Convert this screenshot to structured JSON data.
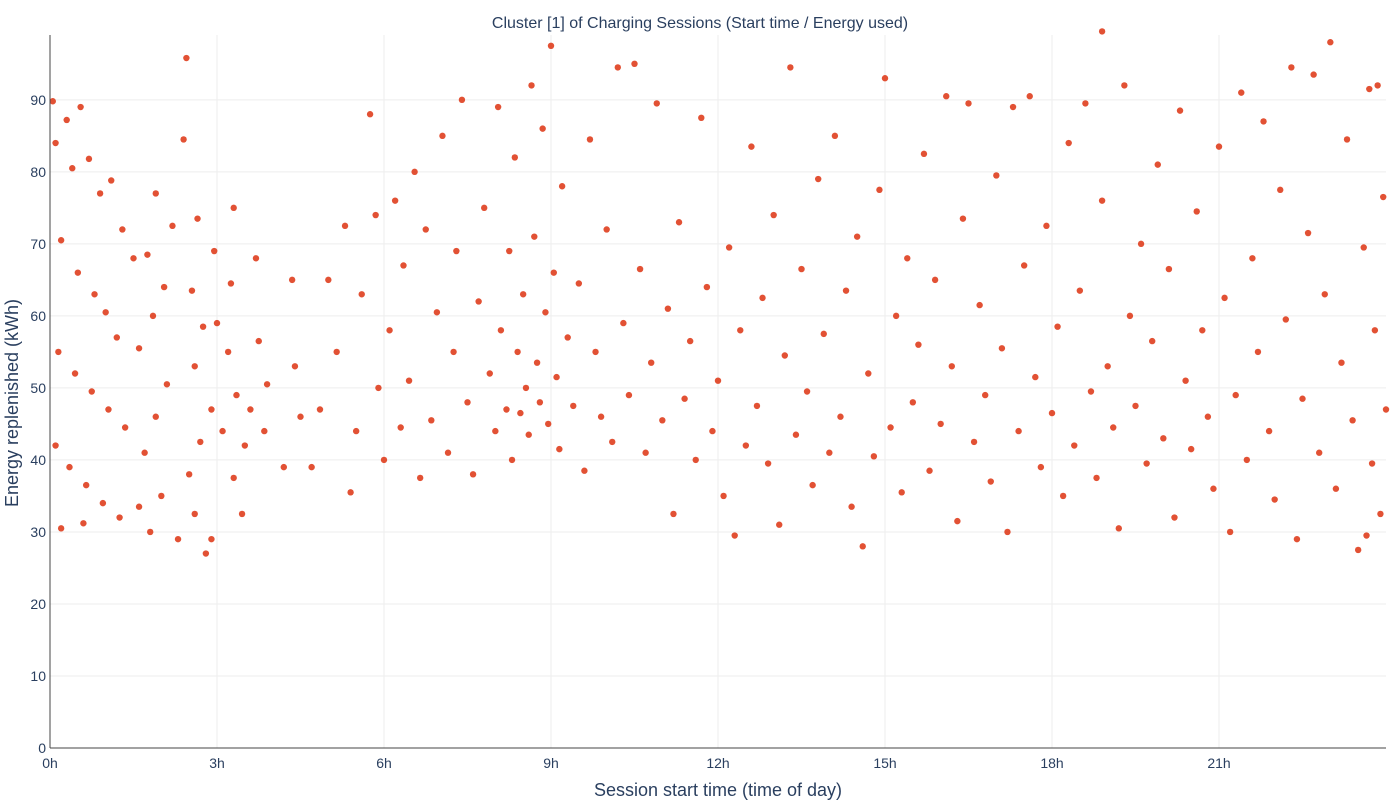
{
  "chart_data": {
    "type": "scatter",
    "title": "Cluster [1] of Charging Sessions (Start time / Energy used)",
    "xlabel": "Session start time (time of day)",
    "ylabel": "Energy replenished (kWh)",
    "x_unit": "hours",
    "xlim": [
      0,
      24
    ],
    "ylim": [
      0,
      99
    ],
    "x_ticks": [
      {
        "value": 0,
        "label": "0h"
      },
      {
        "value": 3,
        "label": "3h"
      },
      {
        "value": 6,
        "label": "6h"
      },
      {
        "value": 9,
        "label": "9h"
      },
      {
        "value": 12,
        "label": "12h"
      },
      {
        "value": 15,
        "label": "15h"
      },
      {
        "value": 18,
        "label": "18h"
      },
      {
        "value": 21,
        "label": "21h"
      }
    ],
    "y_ticks": [
      {
        "value": 0,
        "label": "0"
      },
      {
        "value": 10,
        "label": "10"
      },
      {
        "value": 20,
        "label": "20"
      },
      {
        "value": 30,
        "label": "30"
      },
      {
        "value": 40,
        "label": "40"
      },
      {
        "value": 50,
        "label": "50"
      },
      {
        "value": 60,
        "label": "60"
      },
      {
        "value": 70,
        "label": "70"
      },
      {
        "value": 80,
        "label": "80"
      },
      {
        "value": 90,
        "label": "90"
      }
    ],
    "grid": true,
    "legend": "none",
    "marker_color": "#dd3311",
    "series": [
      {
        "points": [
          [
            0.05,
            89.8
          ],
          [
            0.3,
            87.2
          ],
          [
            0.55,
            89.0
          ],
          [
            0.1,
            84.0
          ],
          [
            0.4,
            80.5
          ],
          [
            0.7,
            81.8
          ],
          [
            0.9,
            77.0
          ],
          [
            1.1,
            78.8
          ],
          [
            1.3,
            72.0
          ],
          [
            1.5,
            68.0
          ],
          [
            0.2,
            70.5
          ],
          [
            0.5,
            66.0
          ],
          [
            0.8,
            63.0
          ],
          [
            1.0,
            60.5
          ],
          [
            1.2,
            57.0
          ],
          [
            0.15,
            55.0
          ],
          [
            0.45,
            52.0
          ],
          [
            0.75,
            49.5
          ],
          [
            1.05,
            47.0
          ],
          [
            1.35,
            44.5
          ],
          [
            0.1,
            42.0
          ],
          [
            0.35,
            39.0
          ],
          [
            0.65,
            36.5
          ],
          [
            0.95,
            34.0
          ],
          [
            1.25,
            32.0
          ],
          [
            0.2,
            30.5
          ],
          [
            0.6,
            31.2
          ],
          [
            1.6,
            33.5
          ],
          [
            1.8,
            30.0
          ],
          [
            2.0,
            35.0
          ],
          [
            1.7,
            41.0
          ],
          [
            1.9,
            46.0
          ],
          [
            2.1,
            50.5
          ],
          [
            1.6,
            55.5
          ],
          [
            1.85,
            60.0
          ],
          [
            2.05,
            64.0
          ],
          [
            1.75,
            68.5
          ],
          [
            2.2,
            72.5
          ],
          [
            1.9,
            77.0
          ],
          [
            2.4,
            84.5
          ],
          [
            2.45,
            95.8
          ],
          [
            2.3,
            29.0
          ],
          [
            2.6,
            32.5
          ],
          [
            2.8,
            27.0
          ],
          [
            2.9,
            29.0
          ],
          [
            2.5,
            38.0
          ],
          [
            2.7,
            42.5
          ],
          [
            2.9,
            47.0
          ],
          [
            2.6,
            53.0
          ],
          [
            2.75,
            58.5
          ],
          [
            2.55,
            63.5
          ],
          [
            2.95,
            69.0
          ],
          [
            2.65,
            73.5
          ],
          [
            3.0,
            59.0
          ],
          [
            3.2,
            55.0
          ],
          [
            3.35,
            49.0
          ],
          [
            3.1,
            44.0
          ],
          [
            3.3,
            37.5
          ],
          [
            3.45,
            32.5
          ],
          [
            3.25,
            64.5
          ],
          [
            3.3,
            75.0
          ],
          [
            3.5,
            42.0
          ],
          [
            3.6,
            47.0
          ],
          [
            3.75,
            56.5
          ],
          [
            3.7,
            68.0
          ],
          [
            3.85,
            44.0
          ],
          [
            3.9,
            50.5
          ],
          [
            4.2,
            39.0
          ],
          [
            4.35,
            65.0
          ],
          [
            4.4,
            53.0
          ],
          [
            4.5,
            46.0
          ],
          [
            4.7,
            39.0
          ],
          [
            4.85,
            47.0
          ],
          [
            5.0,
            65.0
          ],
          [
            5.15,
            55.0
          ],
          [
            5.3,
            72.5
          ],
          [
            5.4,
            35.5
          ],
          [
            5.5,
            44.0
          ],
          [
            5.6,
            63.0
          ],
          [
            5.75,
            88.0
          ],
          [
            5.85,
            74.0
          ],
          [
            5.9,
            50.0
          ],
          [
            6.0,
            40.0
          ],
          [
            6.1,
            58.0
          ],
          [
            6.2,
            76.0
          ],
          [
            6.3,
            44.5
          ],
          [
            6.35,
            67.0
          ],
          [
            6.45,
            51.0
          ],
          [
            6.55,
            80.0
          ],
          [
            6.65,
            37.5
          ],
          [
            6.75,
            72.0
          ],
          [
            6.85,
            45.5
          ],
          [
            6.95,
            60.5
          ],
          [
            7.05,
            85.0
          ],
          [
            7.15,
            41.0
          ],
          [
            7.25,
            55.0
          ],
          [
            7.3,
            69.0
          ],
          [
            7.4,
            90.0
          ],
          [
            7.5,
            48.0
          ],
          [
            7.6,
            38.0
          ],
          [
            7.7,
            62.0
          ],
          [
            7.8,
            75.0
          ],
          [
            7.9,
            52.0
          ],
          [
            8.0,
            44.0
          ],
          [
            8.05,
            89.0
          ],
          [
            8.1,
            58.0
          ],
          [
            8.2,
            47.0
          ],
          [
            8.25,
            69.0
          ],
          [
            8.3,
            40.0
          ],
          [
            8.35,
            82.0
          ],
          [
            8.4,
            55.0
          ],
          [
            8.45,
            46.5
          ],
          [
            8.5,
            63.0
          ],
          [
            8.55,
            50.0
          ],
          [
            8.6,
            43.5
          ],
          [
            8.65,
            92.0
          ],
          [
            8.7,
            71.0
          ],
          [
            8.75,
            53.5
          ],
          [
            8.8,
            48.0
          ],
          [
            8.85,
            86.0
          ],
          [
            8.9,
            60.5
          ],
          [
            8.95,
            45.0
          ],
          [
            9.0,
            97.5
          ],
          [
            9.05,
            66.0
          ],
          [
            9.1,
            51.5
          ],
          [
            9.15,
            41.5
          ],
          [
            9.2,
            78.0
          ],
          [
            9.3,
            57.0
          ],
          [
            9.4,
            47.5
          ],
          [
            9.5,
            64.5
          ],
          [
            9.6,
            38.5
          ],
          [
            9.7,
            84.5
          ],
          [
            9.8,
            55.0
          ],
          [
            9.9,
            46.0
          ],
          [
            10.0,
            72.0
          ],
          [
            10.1,
            42.5
          ],
          [
            10.2,
            94.5
          ],
          [
            10.3,
            59.0
          ],
          [
            10.4,
            49.0
          ],
          [
            10.5,
            95.0
          ],
          [
            10.6,
            66.5
          ],
          [
            10.7,
            41.0
          ],
          [
            10.8,
            53.5
          ],
          [
            10.9,
            89.5
          ],
          [
            11.0,
            45.5
          ],
          [
            11.1,
            61.0
          ],
          [
            11.2,
            32.5
          ],
          [
            11.3,
            73.0
          ],
          [
            11.4,
            48.5
          ],
          [
            11.5,
            56.5
          ],
          [
            11.6,
            40.0
          ],
          [
            11.7,
            87.5
          ],
          [
            11.8,
            64.0
          ],
          [
            11.9,
            44.0
          ],
          [
            12.0,
            51.0
          ],
          [
            12.1,
            35.0
          ],
          [
            12.2,
            69.5
          ],
          [
            12.3,
            29.5
          ],
          [
            12.4,
            58.0
          ],
          [
            12.5,
            42.0
          ],
          [
            12.6,
            83.5
          ],
          [
            12.7,
            47.5
          ],
          [
            12.8,
            62.5
          ],
          [
            12.9,
            39.5
          ],
          [
            13.0,
            74.0
          ],
          [
            13.1,
            31.0
          ],
          [
            13.2,
            54.5
          ],
          [
            13.3,
            94.5
          ],
          [
            13.4,
            43.5
          ],
          [
            13.5,
            66.5
          ],
          [
            13.6,
            49.5
          ],
          [
            13.7,
            36.5
          ],
          [
            13.8,
            79.0
          ],
          [
            13.9,
            57.5
          ],
          [
            14.0,
            41.0
          ],
          [
            14.1,
            85.0
          ],
          [
            14.2,
            46.0
          ],
          [
            14.3,
            63.5
          ],
          [
            14.4,
            33.5
          ],
          [
            14.5,
            71.0
          ],
          [
            14.6,
            28.0
          ],
          [
            14.7,
            52.0
          ],
          [
            14.8,
            40.5
          ],
          [
            14.9,
            77.5
          ],
          [
            15.0,
            93.0
          ],
          [
            15.1,
            44.5
          ],
          [
            15.2,
            60.0
          ],
          [
            15.3,
            35.5
          ],
          [
            15.4,
            68.0
          ],
          [
            15.5,
            48.0
          ],
          [
            15.6,
            56.0
          ],
          [
            15.7,
            82.5
          ],
          [
            15.8,
            38.5
          ],
          [
            15.9,
            65.0
          ],
          [
            16.0,
            45.0
          ],
          [
            16.1,
            90.5
          ],
          [
            16.2,
            53.0
          ],
          [
            16.3,
            31.5
          ],
          [
            16.4,
            73.5
          ],
          [
            16.5,
            89.5
          ],
          [
            16.6,
            42.5
          ],
          [
            16.7,
            61.5
          ],
          [
            16.8,
            49.0
          ],
          [
            16.9,
            37.0
          ],
          [
            17.0,
            79.5
          ],
          [
            17.1,
            55.5
          ],
          [
            17.2,
            30.0
          ],
          [
            17.3,
            89.0
          ],
          [
            17.4,
            44.0
          ],
          [
            17.5,
            67.0
          ],
          [
            17.6,
            90.5
          ],
          [
            17.7,
            51.5
          ],
          [
            17.8,
            39.0
          ],
          [
            17.9,
            72.5
          ],
          [
            18.0,
            46.5
          ],
          [
            18.1,
            58.5
          ],
          [
            18.2,
            35.0
          ],
          [
            18.3,
            84.0
          ],
          [
            18.4,
            42.0
          ],
          [
            18.5,
            63.5
          ],
          [
            18.6,
            89.5
          ],
          [
            18.7,
            49.5
          ],
          [
            18.8,
            37.5
          ],
          [
            18.9,
            76.0
          ],
          [
            19.0,
            53.0
          ],
          [
            19.1,
            44.5
          ],
          [
            19.2,
            30.5
          ],
          [
            19.3,
            92.0
          ],
          [
            19.4,
            60.0
          ],
          [
            19.5,
            47.5
          ],
          [
            19.6,
            70.0
          ],
          [
            19.7,
            39.5
          ],
          [
            19.8,
            56.5
          ],
          [
            19.9,
            81.0
          ],
          [
            20.0,
            43.0
          ],
          [
            20.1,
            66.5
          ],
          [
            20.2,
            32.0
          ],
          [
            20.3,
            88.5
          ],
          [
            20.4,
            51.0
          ],
          [
            20.5,
            41.5
          ],
          [
            20.6,
            74.5
          ],
          [
            20.7,
            58.0
          ],
          [
            20.8,
            46.0
          ],
          [
            20.9,
            36.0
          ],
          [
            21.0,
            83.5
          ],
          [
            21.1,
            62.5
          ],
          [
            21.2,
            30.0
          ],
          [
            21.3,
            49.0
          ],
          [
            21.4,
            91.0
          ],
          [
            21.5,
            40.0
          ],
          [
            21.6,
            68.0
          ],
          [
            21.7,
            55.0
          ],
          [
            21.8,
            87.0
          ],
          [
            21.9,
            44.0
          ],
          [
            22.0,
            34.5
          ],
          [
            22.1,
            77.5
          ],
          [
            22.2,
            59.5
          ],
          [
            22.3,
            94.5
          ],
          [
            22.4,
            29.0
          ],
          [
            22.5,
            48.5
          ],
          [
            22.6,
            71.5
          ],
          [
            22.7,
            93.5
          ],
          [
            22.8,
            41.0
          ],
          [
            22.9,
            63.0
          ],
          [
            23.0,
            98.0
          ],
          [
            23.1,
            36.0
          ],
          [
            23.2,
            53.5
          ],
          [
            23.3,
            84.5
          ],
          [
            23.4,
            45.5
          ],
          [
            23.5,
            27.5
          ],
          [
            23.6,
            69.5
          ],
          [
            23.7,
            91.5
          ],
          [
            23.75,
            39.5
          ],
          [
            23.8,
            58.0
          ],
          [
            23.9,
            32.5
          ],
          [
            23.95,
            76.5
          ],
          [
            24.0,
            47.0
          ],
          [
            23.85,
            92.0
          ],
          [
            23.65,
            29.5
          ],
          [
            18.9,
            99.5
          ]
        ]
      }
    ]
  }
}
